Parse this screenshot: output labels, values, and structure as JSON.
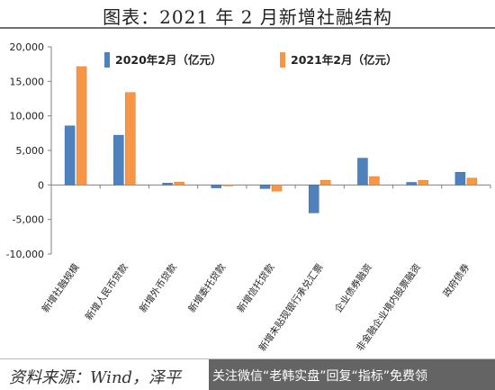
{
  "title": "图表：2021 年 2 月新增社融结构",
  "source": "资料来源：Wind，泽平",
  "watermark": "关注微信“老韩实盘”回复“指标”免费领",
  "colors": {
    "series1": "#4f81bd",
    "series2": "#f79646"
  },
  "chart_data": {
    "type": "bar",
    "categories": [
      "新增社融规模",
      "新增人民币贷款",
      "新增外币贷款",
      "新增委托贷款",
      "新增信托贷款",
      "新增未贴现银行承兑汇票",
      "企业债券融资",
      "非金融企业境内股票融资",
      "政府债券"
    ],
    "series": [
      {
        "name": "2020年2月（亿元）",
        "values": [
          8554,
          7202,
          261,
          -423,
          -526,
          -4046,
          3881,
          370,
          1839
        ]
      },
      {
        "name": "2021年2月（亿元）",
        "values": [
          17131,
          13382,
          418,
          -133,
          -897,
          680,
          1212,
          670,
          985
        ]
      }
    ],
    "ylim": [
      -10000,
      20000
    ],
    "yticks": [
      -10000,
      -5000,
      0,
      5000,
      10000,
      15000,
      20000
    ],
    "ytick_labels": [
      "-10,000",
      "-5,000",
      "0",
      "5,000",
      "10,000",
      "15,000",
      "20,000"
    ],
    "legend_position": "top",
    "grid": false
  }
}
